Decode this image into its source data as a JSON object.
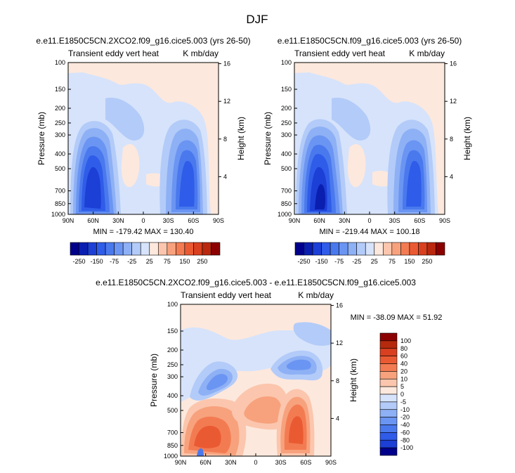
{
  "page_title": "DJF",
  "panels": [
    {
      "title": "e.e11.E1850C5CN.2XCO2.f09_g16.cice5.003 (yrs 26-50)",
      "left_label": "Transient eddy vert heat",
      "right_label": "K mb/day",
      "stats": "MIN = -179.42   MAX = 130.40"
    },
    {
      "title": "e.e11.E1850C5CN.f09_g16.cice5.003 (yrs 26-50)",
      "left_label": "Transient eddy vert heat",
      "right_label": "K mb/day",
      "stats": "MIN = -219.44   MAX = 100.18"
    },
    {
      "title": "e.e11.E1850C5CN.2XCO2.f09_g16.cice5.003 - e.e11.E1850C5CN.f09_g16.cice5.003",
      "left_label": "Transient eddy vert heat",
      "right_label": "K mb/day",
      "stats": "MIN = -38.09   MAX =  51.92"
    }
  ],
  "axes": {
    "ylabel": "Pressure (mb)",
    "y2label": "Height (km)",
    "pressure_ticks": [
      "100",
      "150",
      "200",
      "250",
      "300",
      "400",
      "500",
      "700",
      "850",
      "1000"
    ],
    "height_ticks": [
      "16",
      "12",
      "8",
      "4"
    ],
    "lat_ticks": [
      "90N",
      "60N",
      "30N",
      "0",
      "30S",
      "60S",
      "90S"
    ]
  },
  "colorbar_top": {
    "labels": [
      "-250",
      "-150",
      "-75",
      "-25",
      "25",
      "75",
      "150",
      "250"
    ],
    "colors": [
      "#00008b",
      "#0a1fb0",
      "#1c3fd6",
      "#2f5ce8",
      "#4a79ee",
      "#6b95f2",
      "#8eb0f5",
      "#b3cbf8",
      "#d6e3fb",
      "#fde8dd",
      "#fbc6ad",
      "#f7a27d",
      "#f37b52",
      "#ea5a32",
      "#d8401f",
      "#b9280f",
      "#8b0000"
    ]
  },
  "colorbar_diff": {
    "labels": [
      "100",
      "80",
      "60",
      "40",
      "20",
      "10",
      "5",
      "0",
      "-5",
      "-10",
      "-20",
      "-40",
      "-60",
      "-80",
      "-100"
    ],
    "colors": [
      "#8b0000",
      "#b52a0d",
      "#d8401f",
      "#ea5a32",
      "#f37b52",
      "#f7a27d",
      "#fbc6ad",
      "#fde8dd",
      "#d6e3fb",
      "#b3cbf8",
      "#8eb0f5",
      "#6b95f2",
      "#4a79ee",
      "#2f5ce8",
      "#1c3fd6",
      "#00008b"
    ]
  },
  "chart_data": [
    {
      "type": "heatmap",
      "title": "e.e11.E1850C5CN.2XCO2.f09_g16.cice5.003 (yrs 26-50)",
      "xlabel": "",
      "ylabel": "Pressure (mb)",
      "y2label": "Height (km)",
      "x_ticks": [
        "90N",
        "60N",
        "30N",
        "0",
        "30S",
        "60S",
        "90S"
      ],
      "y_ticks": [
        "100",
        "150",
        "200",
        "250",
        "300",
        "400",
        "500",
        "700",
        "850",
        "1000"
      ],
      "y_scale": "log",
      "ylim": [
        1000,
        100
      ],
      "min": -179.42,
      "max": 130.4,
      "features": [
        {
          "center_lat": 50,
          "center_p": 650,
          "value": -175
        },
        {
          "center_lat": -50,
          "center_p": 600,
          "value": -160
        }
      ]
    },
    {
      "type": "heatmap",
      "title": "e.e11.E1850C5CN.f09_g16.cice5.003 (yrs 26-50)",
      "xlabel": "",
      "ylabel": "Pressure (mb)",
      "y2label": "Height (km)",
      "x_ticks": [
        "90N",
        "60N",
        "30N",
        "0",
        "30S",
        "60S",
        "90S"
      ],
      "y_ticks": [
        "100",
        "150",
        "200",
        "250",
        "300",
        "400",
        "500",
        "700",
        "850",
        "1000"
      ],
      "y_scale": "log",
      "ylim": [
        1000,
        100
      ],
      "min": -219.44,
      "max": 100.18,
      "features": [
        {
          "center_lat": 50,
          "center_p": 700,
          "value": -215
        },
        {
          "center_lat": -50,
          "center_p": 600,
          "value": -160
        }
      ]
    },
    {
      "type": "heatmap",
      "title": "e.e11.E1850C5CN.2XCO2.f09_g16.cice5.003 - e.e11.E1850C5CN.f09_g16.cice5.003",
      "xlabel": "",
      "ylabel": "Pressure (mb)",
      "y2label": "Height (km)",
      "x_ticks": [
        "90N",
        "60N",
        "30N",
        "0",
        "30S",
        "60S",
        "90S"
      ],
      "y_ticks": [
        "100",
        "150",
        "200",
        "250",
        "300",
        "400",
        "500",
        "700",
        "850",
        "1000"
      ],
      "y_scale": "log",
      "ylim": [
        1000,
        100
      ],
      "min": -38.09,
      "max": 51.92,
      "features": [
        {
          "center_lat": 45,
          "center_p": 750,
          "value": 40
        },
        {
          "center_lat": -45,
          "center_p": 650,
          "value": 40
        },
        {
          "center_lat": 40,
          "center_p": 320,
          "value": -20
        },
        {
          "center_lat": -40,
          "center_p": 300,
          "value": -20
        }
      ]
    }
  ]
}
